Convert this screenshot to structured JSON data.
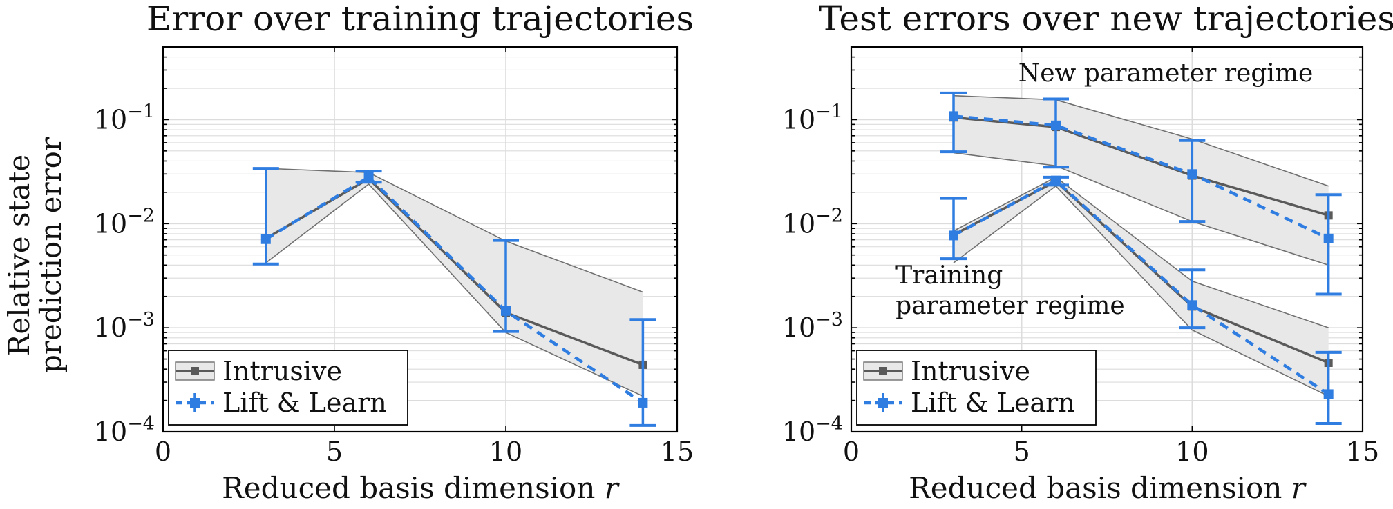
{
  "colors": {
    "intrusive": "#5a5a5a",
    "lift_learn": "#2f7de1",
    "band_fill": "#e8e8e8",
    "band_edge": "#707070",
    "grid": "#dcdcdc"
  },
  "y_axis_label_lines": [
    "Relative state",
    "prediction error"
  ],
  "chart_data": [
    {
      "type": "line",
      "title": "Error over training trajectories",
      "xlabel": "Reduced basis dimension r",
      "ylabel": "Relative state prediction error",
      "xlim": [
        0,
        15
      ],
      "ylim": [
        0.0001,
        0.5
      ],
      "yscale": "log",
      "grid": true,
      "xticks": [
        0,
        5,
        10,
        15
      ],
      "yticks": [
        {
          "value": 0.0001,
          "base": "10",
          "exp": "−4"
        },
        {
          "value": 0.001,
          "base": "10",
          "exp": "−3"
        },
        {
          "value": 0.01,
          "base": "10",
          "exp": "−2"
        },
        {
          "value": 0.1,
          "base": "10",
          "exp": "−1"
        }
      ],
      "legend": {
        "placement": "bottom-left",
        "entries": [
          "Intrusive",
          "Lift & Learn"
        ]
      },
      "annotations": [],
      "groups": [
        {
          "x": [
            3,
            6,
            10,
            14
          ],
          "band": {
            "upper": [
              0.034,
              0.031,
              0.0068,
              0.0022
            ],
            "lower": [
              0.0042,
              0.024,
              0.0009,
              0.00022
            ]
          },
          "intrusive": [
            0.0072,
            0.027,
            0.0014,
            0.00044
          ],
          "lift_learn": {
            "y": [
              0.0071,
              0.028,
              0.00145,
              0.00019
            ],
            "err_low": [
              0.0041,
              0.025,
              0.00092,
              0.000115
            ],
            "err_high": [
              0.034,
              0.032,
              0.0069,
              0.0012
            ]
          }
        }
      ]
    },
    {
      "type": "line",
      "title": "Test errors over new trajectories",
      "xlabel": "Reduced basis dimension r",
      "ylabel": "",
      "xlim": [
        0,
        15
      ],
      "ylim": [
        0.0001,
        0.5
      ],
      "yscale": "log",
      "grid": true,
      "xticks": [
        0,
        5,
        10,
        15
      ],
      "yticks": [
        {
          "value": 0.0001,
          "base": "10",
          "exp": "−4"
        },
        {
          "value": 0.001,
          "base": "10",
          "exp": "−3"
        },
        {
          "value": 0.01,
          "base": "10",
          "exp": "−2"
        },
        {
          "value": 0.1,
          "base": "10",
          "exp": "−1"
        }
      ],
      "legend": {
        "placement": "bottom-left",
        "entries": [
          "Intrusive",
          "Lift & Learn"
        ]
      },
      "annotations": [
        {
          "lines": [
            "New parameter regime"
          ],
          "x": 4.9,
          "y": 0.28
        },
        {
          "lines": [
            "Training",
            "parameter regime"
          ],
          "x": 1.3,
          "y": 0.0032
        }
      ],
      "groups": [
        {
          "x": [
            3,
            6,
            10,
            14
          ],
          "band": {
            "upper": [
              0.17,
              0.155,
              0.065,
              0.023
            ],
            "lower": [
              0.048,
              0.036,
              0.0105,
              0.004
            ]
          },
          "intrusive": [
            0.105,
            0.085,
            0.029,
            0.012
          ],
          "lift_learn": {
            "y": [
              0.108,
              0.088,
              0.03,
              0.0072
            ],
            "err_low": [
              0.049,
              0.035,
              0.0105,
              0.0021
            ],
            "err_high": [
              0.18,
              0.158,
              0.063,
              0.019
            ]
          }
        },
        {
          "x": [
            3,
            6,
            10,
            14
          ],
          "band": {
            "upper": [
              0.0085,
              0.028,
              0.0028,
              0.001
            ],
            "lower": [
              0.0042,
              0.023,
              0.00095,
              0.00022
            ]
          },
          "intrusive": [
            0.0078,
            0.0255,
            0.0016,
            0.00046
          ],
          "lift_learn": {
            "y": [
              0.0077,
              0.026,
              0.00165,
              0.00023
            ],
            "err_low": [
              0.0046,
              0.0235,
              0.001,
              0.00012
            ],
            "err_high": [
              0.0175,
              0.028,
              0.0036,
              0.00058
            ]
          }
        }
      ]
    }
  ]
}
